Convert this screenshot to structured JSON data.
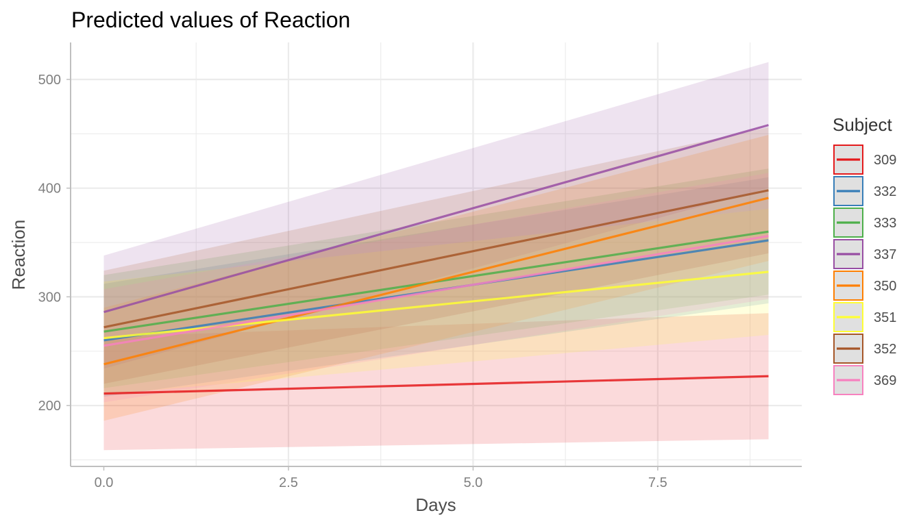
{
  "chart_data": {
    "type": "line",
    "title": "Predicted values of Reaction",
    "xlabel": "Days",
    "ylabel": "Reaction",
    "xlim": [
      -0.45,
      9.45
    ],
    "ylim": [
      144,
      534
    ],
    "x_ticks": [
      0.0,
      2.5,
      5.0,
      7.5
    ],
    "x_tick_labels": [
      "0.0",
      "2.5",
      "5.0",
      "7.5"
    ],
    "y_ticks": [
      200,
      300,
      400,
      500
    ],
    "y_tick_labels": [
      "200",
      "300",
      "400",
      "500"
    ],
    "x_range": [
      0,
      9
    ],
    "grid": true,
    "legend": {
      "title": "Subject",
      "position": "right"
    },
    "series": [
      {
        "name": "309",
        "color": "#E41A1C",
        "start": 211,
        "end": 227,
        "lower": [
          159,
          169
        ],
        "upper": [
          263,
          285
        ]
      },
      {
        "name": "332",
        "color": "#377EB8",
        "start": 260,
        "end": 352,
        "lower": [
          208,
          294
        ],
        "upper": [
          312,
          410
        ]
      },
      {
        "name": "333",
        "color": "#4DAF4A",
        "start": 268,
        "end": 360,
        "lower": [
          216,
          302
        ],
        "upper": [
          320,
          418
        ]
      },
      {
        "name": "337",
        "color": "#984EA3",
        "start": 286,
        "end": 458,
        "lower": [
          234,
          400
        ],
        "upper": [
          338,
          516
        ]
      },
      {
        "name": "350",
        "color": "#FF7F00",
        "start": 238,
        "end": 391,
        "lower": [
          186,
          333
        ],
        "upper": [
          290,
          449
        ]
      },
      {
        "name": "351",
        "color": "#FFFF33",
        "start": 262,
        "end": 323,
        "lower": [
          210,
          265
        ],
        "upper": [
          314,
          381
        ]
      },
      {
        "name": "352",
        "color": "#A65628",
        "start": 272,
        "end": 398,
        "lower": [
          220,
          340
        ],
        "upper": [
          324,
          456
        ]
      },
      {
        "name": "369",
        "color": "#F781BF",
        "start": 255,
        "end": 356,
        "lower": [
          203,
          298
        ],
        "upper": [
          307,
          414
        ]
      }
    ]
  }
}
